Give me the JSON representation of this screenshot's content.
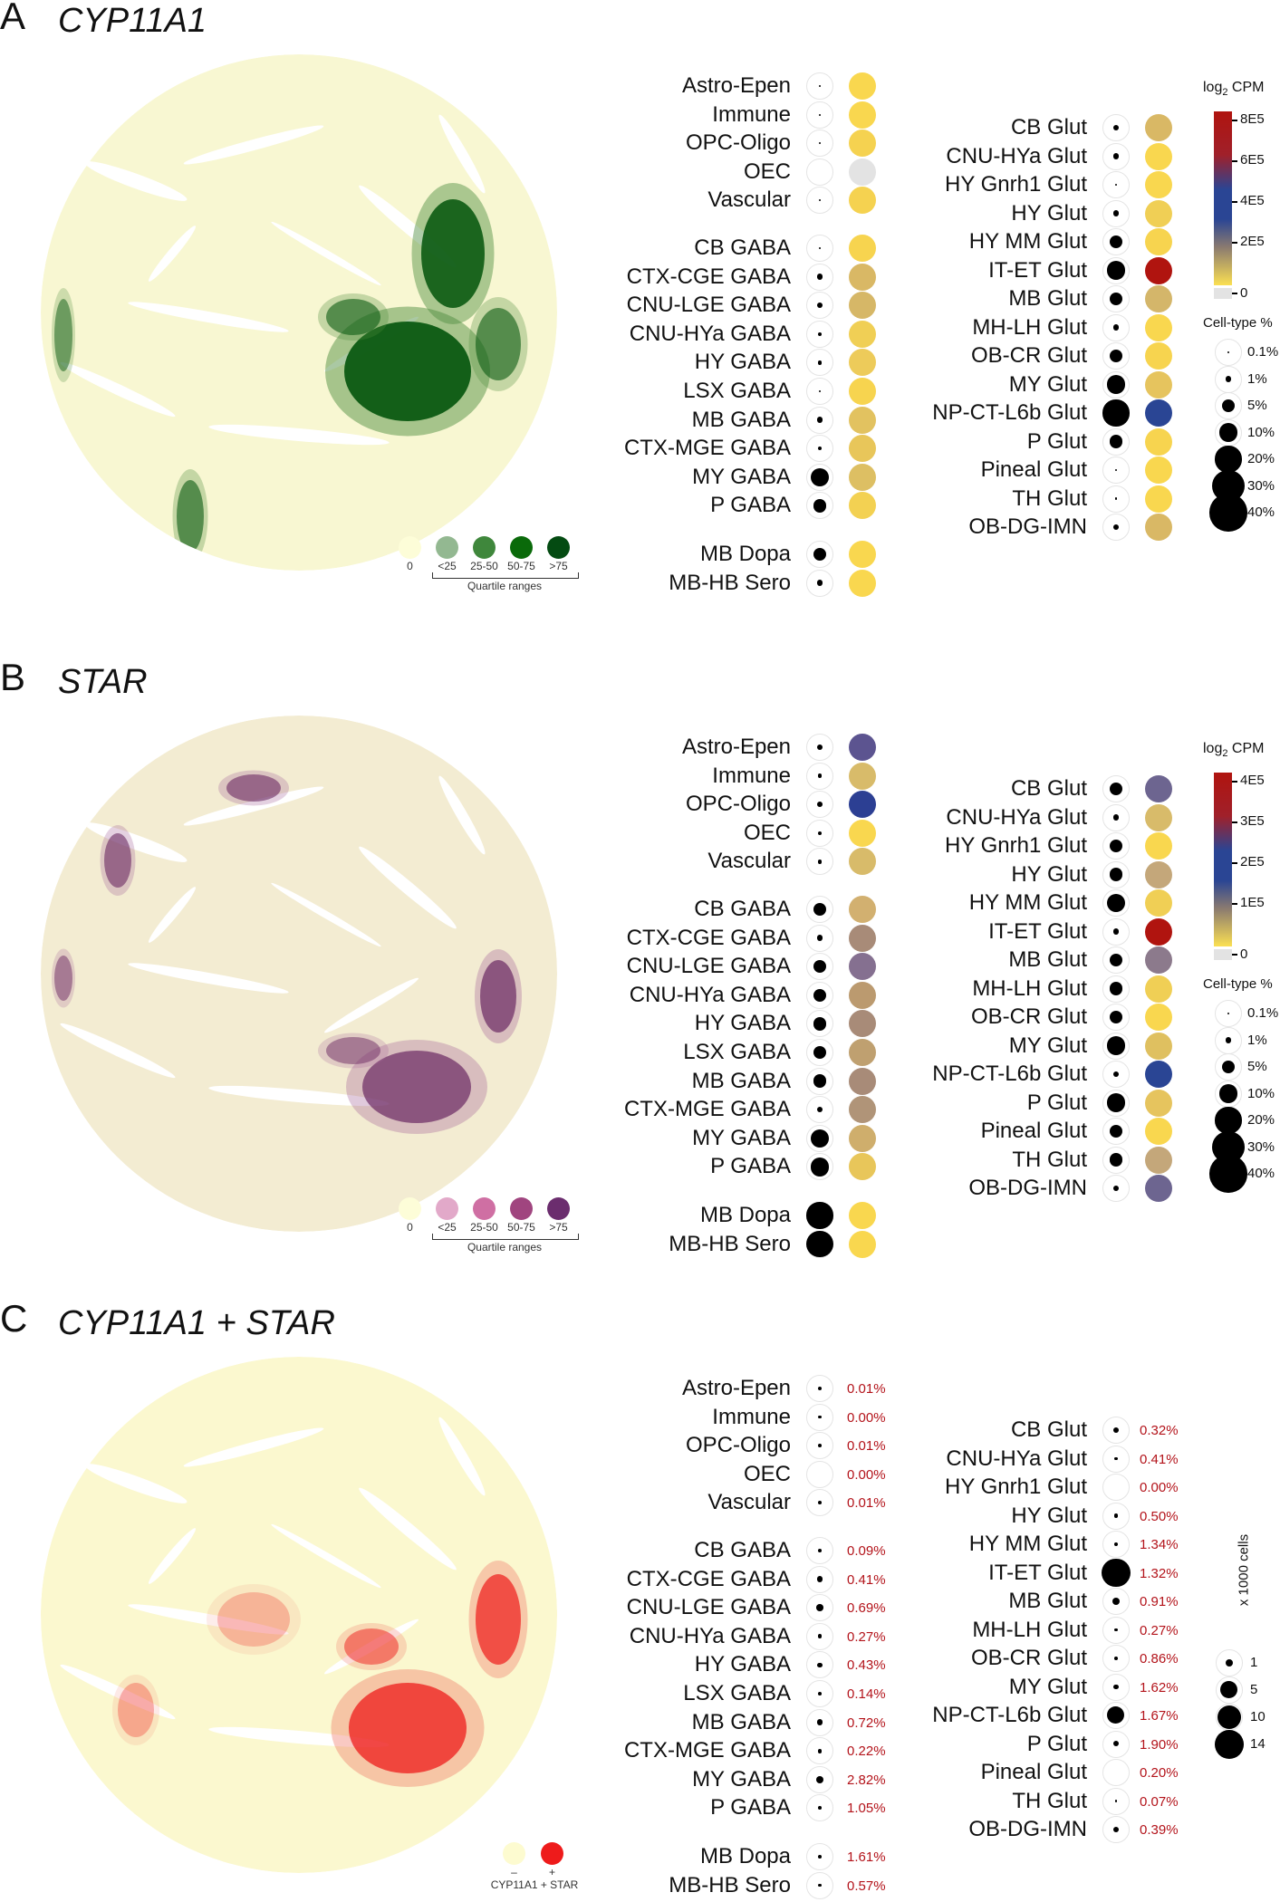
{
  "panels": [
    {
      "letter": "A",
      "gene": "CYP11A1",
      "mode": "expression",
      "left_groups": [
        [
          {
            "label": "Astro-Epen",
            "pct": 0.1,
            "color": "#f9d74f"
          },
          {
            "label": "Immune",
            "pct": 0.1,
            "color": "#f9d74f"
          },
          {
            "label": "OPC-Oligo",
            "pct": 0.1,
            "color": "#f5d250"
          },
          {
            "label": "OEC",
            "pct": 0,
            "color": "#e3e3e3"
          },
          {
            "label": "Vascular",
            "pct": 0.1,
            "color": "#f5d250"
          }
        ],
        [
          {
            "label": "CB GABA",
            "pct": 0.1,
            "color": "#f7d44f"
          },
          {
            "label": "CTX-CGE GABA",
            "pct": 1,
            "color": "#d9b865"
          },
          {
            "label": "CNU-LGE GABA",
            "pct": 1,
            "color": "#d6b767"
          },
          {
            "label": "CNU-HYa GABA",
            "pct": 0.5,
            "color": "#f0cf55"
          },
          {
            "label": "HY GABA",
            "pct": 0.5,
            "color": "#edcb5a"
          },
          {
            "label": "LSX GABA",
            "pct": 0.1,
            "color": "#f7d44f"
          },
          {
            "label": "MB GABA",
            "pct": 1,
            "color": "#e2c260"
          },
          {
            "label": "CTX-MGE GABA",
            "pct": 0.5,
            "color": "#e8c65a"
          },
          {
            "label": "MY GABA",
            "pct": 10,
            "color": "#ddbf63"
          },
          {
            "label": "P GABA",
            "pct": 5,
            "color": "#f3d152"
          }
        ],
        [
          {
            "label": "MB Dopa",
            "pct": 5,
            "color": "#f9d74f"
          },
          {
            "label": "MB-HB Sero",
            "pct": 1,
            "color": "#f9d74f"
          }
        ]
      ],
      "right_group": [
        {
          "label": "CB Glut",
          "pct": 1,
          "color": "#d9b865"
        },
        {
          "label": "CNU-HYa Glut",
          "pct": 1,
          "color": "#f9d74f"
        },
        {
          "label": "HY Gnrh1 Glut",
          "pct": 0.1,
          "color": "#f9d74f"
        },
        {
          "label": "HY Glut",
          "pct": 1,
          "color": "#f0cf55"
        },
        {
          "label": "HY MM Glut",
          "pct": 5,
          "color": "#f7d44f"
        },
        {
          "label": "IT-ET Glut",
          "pct": 10,
          "color": "#b0140f"
        },
        {
          "label": "MB Glut",
          "pct": 5,
          "color": "#d4b66a"
        },
        {
          "label": "MH-LH Glut",
          "pct": 1,
          "color": "#f9d74f"
        },
        {
          "label": "OB-CR Glut",
          "pct": 5,
          "color": "#f7d44f"
        },
        {
          "label": "MY Glut",
          "pct": 10,
          "color": "#e6c45e"
        },
        {
          "label": "NP-CT-L6b Glut",
          "pct": 20,
          "color": "#2a4594"
        },
        {
          "label": "P Glut",
          "pct": 5,
          "color": "#f7d44f"
        },
        {
          "label": "Pineal Glut",
          "pct": 0.1,
          "color": "#f9d74f"
        },
        {
          "label": "TH Glut",
          "pct": 0.1,
          "color": "#f9d74f"
        },
        {
          "label": "OB-DG-IMN",
          "pct": 1,
          "color": "#d9b865"
        }
      ],
      "colorbar": {
        "title": "log",
        "title_sub": "2",
        "title_rest": " CPM",
        "ticks": [
          "8E5",
          "6E5",
          "4E5",
          "2E5"
        ],
        "zero": "0"
      },
      "size_legend": {
        "title": "Cell-type %",
        "items": [
          {
            "label": "0.1%",
            "pct": 0.1
          },
          {
            "label": "1%",
            "pct": 1
          },
          {
            "label": "5%",
            "pct": 5
          },
          {
            "label": "10%",
            "pct": 10
          },
          {
            "label": "20%",
            "pct": 20
          },
          {
            "label": "30%",
            "pct": 30
          },
          {
            "label": "40%",
            "pct": 40
          }
        ]
      },
      "quartile_legend": {
        "zero": "0",
        "labels": [
          "<25",
          "25-50",
          "50-75",
          ">75"
        ],
        "colors": [
          "#fdfdd8",
          "#93b891",
          "#3f873c",
          "#0a6a0a",
          "#044b12"
        ],
        "caption": "Quartile ranges"
      },
      "map_colors": {
        "base": "#f8f7d2",
        "hi": "#0b5a12",
        "mid": "#4c8b3d"
      }
    },
    {
      "letter": "B",
      "gene": "STAR",
      "mode": "expression",
      "left_groups": [
        [
          {
            "label": "Astro-Epen",
            "pct": 1,
            "color": "#5c5490"
          },
          {
            "label": "Immune",
            "pct": 0.5,
            "color": "#d8bb6a"
          },
          {
            "label": "OPC-Oligo",
            "pct": 1,
            "color": "#2c3f93"
          },
          {
            "label": "OEC",
            "pct": 0.5,
            "color": "#f9d74f"
          },
          {
            "label": "Vascular",
            "pct": 0.5,
            "color": "#d8bb6a"
          }
        ],
        [
          {
            "label": "CB GABA",
            "pct": 5,
            "color": "#d2b070"
          },
          {
            "label": "CTX-CGE GABA",
            "pct": 1,
            "color": "#a88b78"
          },
          {
            "label": "CNU-LGE GABA",
            "pct": 5,
            "color": "#857090"
          },
          {
            "label": "CNU-HYa GABA",
            "pct": 5,
            "color": "#bb9a6f"
          },
          {
            "label": "HY GABA",
            "pct": 5,
            "color": "#a88b78"
          },
          {
            "label": "LSX GABA",
            "pct": 5,
            "color": "#bfa070"
          },
          {
            "label": "MB GABA",
            "pct": 5,
            "color": "#a88b78"
          },
          {
            "label": "CTX-MGE GABA",
            "pct": 1,
            "color": "#b09478"
          },
          {
            "label": "MY GABA",
            "pct": 10,
            "color": "#cfae6c"
          },
          {
            "label": "P GABA",
            "pct": 10,
            "color": "#e8c65a"
          }
        ],
        [
          {
            "label": "MB Dopa",
            "pct": 20,
            "color": "#f9d74f"
          },
          {
            "label": "MB-HB Sero",
            "pct": 20,
            "color": "#f9d74f"
          }
        ]
      ],
      "right_group": [
        {
          "label": "CB Glut",
          "pct": 5,
          "color": "#6d6590"
        },
        {
          "label": "CNU-HYa Glut",
          "pct": 1,
          "color": "#d8bb6a"
        },
        {
          "label": "HY Gnrh1 Glut",
          "pct": 5,
          "color": "#f9d74f"
        },
        {
          "label": "HY Glut",
          "pct": 5,
          "color": "#c4a77a"
        },
        {
          "label": "HY MM Glut",
          "pct": 10,
          "color": "#f0cf55"
        },
        {
          "label": "IT-ET Glut",
          "pct": 1,
          "color": "#b0140f"
        },
        {
          "label": "MB Glut",
          "pct": 5,
          "color": "#8c7a8c"
        },
        {
          "label": "MH-LH Glut",
          "pct": 5,
          "color": "#f0cf55"
        },
        {
          "label": "OB-CR Glut",
          "pct": 5,
          "color": "#f9d74f"
        },
        {
          "label": "MY Glut",
          "pct": 10,
          "color": "#dfc060"
        },
        {
          "label": "NP-CT-L6b Glut",
          "pct": 1,
          "color": "#2a4594"
        },
        {
          "label": "P Glut",
          "pct": 10,
          "color": "#e6c45e"
        },
        {
          "label": "Pineal Glut",
          "pct": 5,
          "color": "#f9d74f"
        },
        {
          "label": "TH Glut",
          "pct": 5,
          "color": "#c4a77a"
        },
        {
          "label": "OB-DG-IMN",
          "pct": 1,
          "color": "#6d6590"
        }
      ],
      "colorbar": {
        "title": "log",
        "title_sub": "2",
        "title_rest": " CPM",
        "ticks": [
          "4E5",
          "3E5",
          "2E5",
          "1E5"
        ],
        "zero": "0"
      },
      "size_legend": {
        "title": "Cell-type %",
        "items": [
          {
            "label": "0.1%",
            "pct": 0.1
          },
          {
            "label": "1%",
            "pct": 1
          },
          {
            "label": "5%",
            "pct": 5
          },
          {
            "label": "10%",
            "pct": 10
          },
          {
            "label": "20%",
            "pct": 20
          },
          {
            "label": "30%",
            "pct": 30
          },
          {
            "label": "40%",
            "pct": 40
          }
        ]
      },
      "quartile_legend": {
        "zero": "0",
        "labels": [
          "<25",
          "25-50",
          "50-75",
          ">75"
        ],
        "colors": [
          "#fdfdd8",
          "#e2a9c9",
          "#cf6fa3",
          "#a0457f",
          "#6b2d6e"
        ],
        "caption": "Quartile ranges"
      },
      "map_colors": {
        "base": "#f3ecd2",
        "hi": "#6b2a62",
        "mid": "#a7679a"
      }
    },
    {
      "letter": "C",
      "gene": "CYP11A1 + STAR",
      "mode": "coexpression",
      "left_groups": [
        [
          {
            "label": "Astro-Epen",
            "cells": 0.3,
            "pct": "0.01%"
          },
          {
            "label": "Immune",
            "cells": 0.2,
            "pct": "0.00%"
          },
          {
            "label": "OPC-Oligo",
            "cells": 0.2,
            "pct": "0.01%"
          },
          {
            "label": "OEC",
            "cells": 0,
            "pct": "0.00%"
          },
          {
            "label": "Vascular",
            "cells": 0.2,
            "pct": "0.01%"
          }
        ],
        [
          {
            "label": "CB GABA",
            "cells": 0.2,
            "pct": "0.09%"
          },
          {
            "label": "CTX-CGE GABA",
            "cells": 0.6,
            "pct": "0.41%"
          },
          {
            "label": "CNU-LGE GABA",
            "cells": 0.8,
            "pct": "0.69%"
          },
          {
            "label": "CNU-HYa GABA",
            "cells": 0.3,
            "pct": "0.27%"
          },
          {
            "label": "HY GABA",
            "cells": 0.4,
            "pct": "0.43%"
          },
          {
            "label": "LSX GABA",
            "cells": 0.2,
            "pct": "0.14%"
          },
          {
            "label": "MB GABA",
            "cells": 0.6,
            "pct": "0.72%"
          },
          {
            "label": "CTX-MGE GABA",
            "cells": 0.3,
            "pct": "0.22%"
          },
          {
            "label": "MY GABA",
            "cells": 1,
            "pct": "2.82%"
          },
          {
            "label": "P GABA",
            "cells": 0.2,
            "pct": "1.05%"
          }
        ],
        [
          {
            "label": "MB Dopa",
            "cells": 0.2,
            "pct": "1.61%"
          },
          {
            "label": "MB-HB Sero",
            "cells": 0.2,
            "pct": "0.57%"
          }
        ]
      ],
      "right_group": [
        {
          "label": "CB Glut",
          "cells": 0.5,
          "pct": "0.32%"
        },
        {
          "label": "CNU-HYa Glut",
          "cells": 0.2,
          "pct": "0.41%"
        },
        {
          "label": "HY Gnrh1 Glut",
          "cells": 0,
          "pct": "0.00%"
        },
        {
          "label": "HY Glut",
          "cells": 0.3,
          "pct": "0.50%"
        },
        {
          "label": "HY MM Glut",
          "cells": 0.3,
          "pct": "1.34%"
        },
        {
          "label": "IT-ET Glut",
          "cells": 14,
          "pct": "1.32%"
        },
        {
          "label": "MB Glut",
          "cells": 1,
          "pct": "0.91%"
        },
        {
          "label": "MH-LH Glut",
          "cells": 0.2,
          "pct": "0.27%"
        },
        {
          "label": "OB-CR Glut",
          "cells": 0.2,
          "pct": "0.86%"
        },
        {
          "label": "MY Glut",
          "cells": 0.4,
          "pct": "1.62%"
        },
        {
          "label": "NP-CT-L6b Glut",
          "cells": 5,
          "pct": "1.67%"
        },
        {
          "label": "P Glut",
          "cells": 0.5,
          "pct": "1.90%"
        },
        {
          "label": "Pineal Glut",
          "cells": 0,
          "pct": "0.20%"
        },
        {
          "label": "TH Glut",
          "cells": 0.1,
          "pct": "0.07%"
        },
        {
          "label": "OB-DG-IMN",
          "cells": 0.5,
          "pct": "0.39%"
        }
      ],
      "cells_legend": {
        "title": "x 1000 cells",
        "items": [
          {
            "label": "1",
            "cells": 1
          },
          {
            "label": "5",
            "cells": 5
          },
          {
            "label": "10",
            "cells": 10
          },
          {
            "label": "14",
            "cells": 14
          }
        ]
      },
      "coexp_legend": {
        "neg": "–",
        "pos": "+",
        "caption": "CYP11A1 + STAR",
        "colors": [
          "#fdfbd0",
          "#ee1b1b"
        ]
      },
      "map_colors": {
        "base": "#fbf8cf",
        "hi": "#ee1b1b",
        "mid": "#f07060"
      }
    }
  ]
}
